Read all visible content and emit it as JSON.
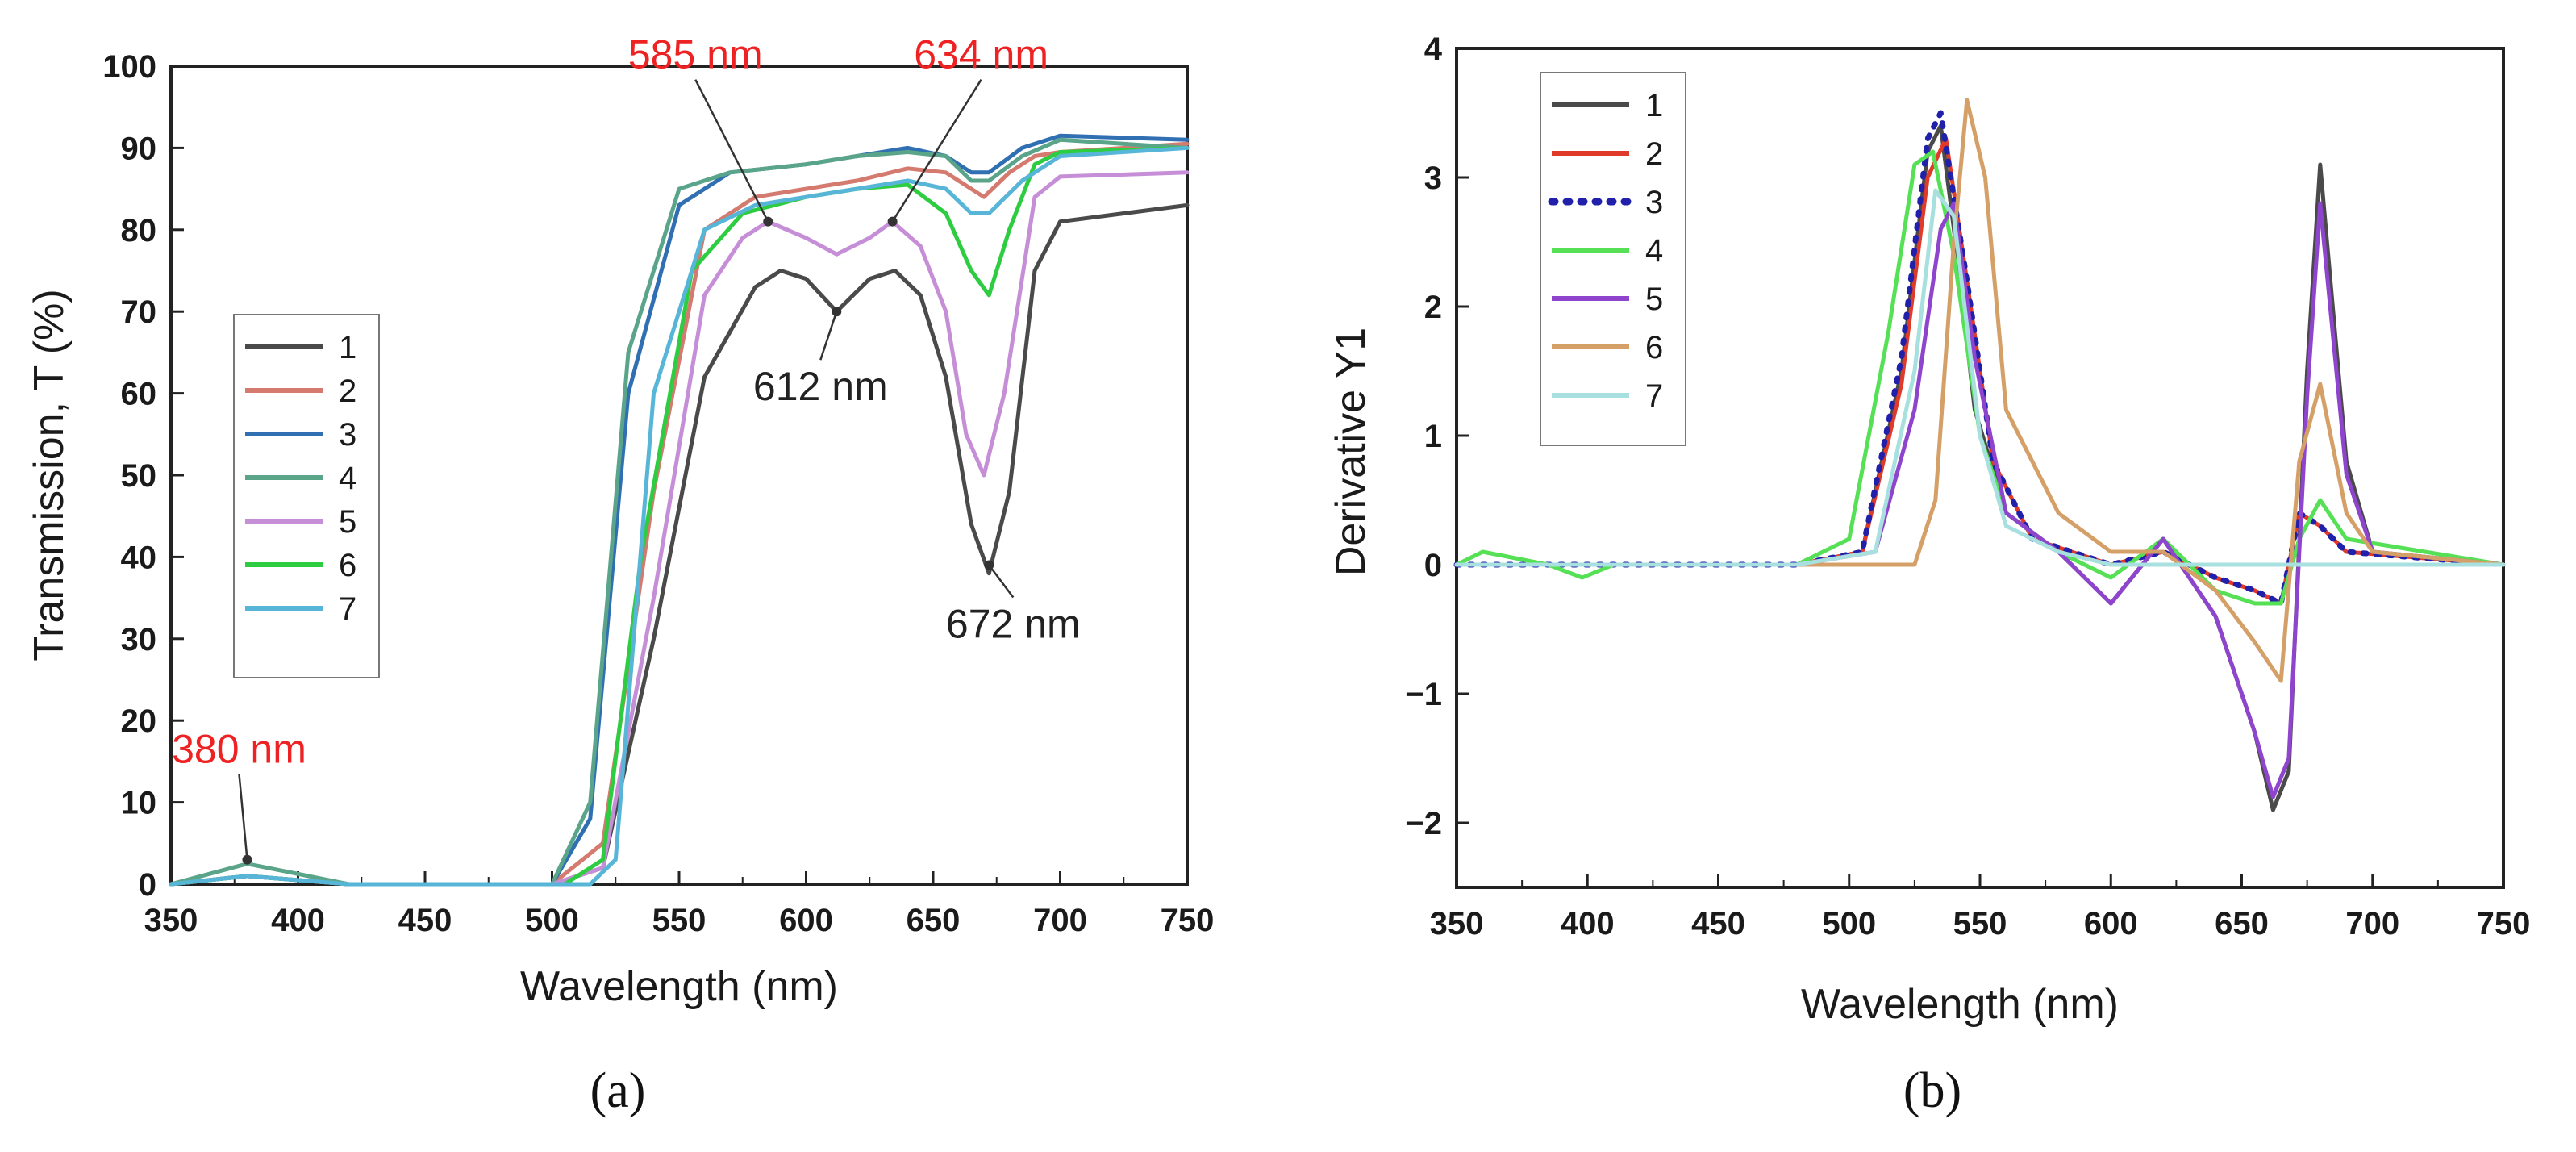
{
  "chart_data": [
    {
      "panel": "(a)",
      "type": "line",
      "xlabel": "Wavelength (nm)",
      "ylabel": "Transmission, T (%)",
      "xlim": [
        350,
        750
      ],
      "ylim": [
        0,
        100
      ],
      "xticks": [
        350,
        400,
        450,
        500,
        550,
        600,
        650,
        700,
        750
      ],
      "yticks": [
        0,
        10,
        20,
        30,
        40,
        50,
        60,
        70,
        80,
        90,
        100
      ],
      "annotations": [
        {
          "text": "380 nm",
          "color": "#ee2222",
          "x": 380,
          "y": 3
        },
        {
          "text": "585 nm",
          "color": "#ee2222",
          "x": 585,
          "y": 81
        },
        {
          "text": "634 nm",
          "color": "#ee2222",
          "x": 634,
          "y": 81
        },
        {
          "text": "612 nm",
          "color": "#222222",
          "x": 612,
          "y": 70
        },
        {
          "text": "672 nm",
          "color": "#222222",
          "x": 672,
          "y": 39
        }
      ],
      "series": [
        {
          "name": "1",
          "color": "#4a4a4a",
          "x": [
            350,
            380,
            420,
            500,
            520,
            540,
            560,
            580,
            590,
            600,
            612,
            625,
            635,
            645,
            655,
            665,
            672,
            680,
            690,
            700,
            750
          ],
          "y": [
            0,
            1,
            0,
            0,
            2,
            30,
            62,
            73,
            75,
            74,
            70,
            74,
            75,
            72,
            62,
            44,
            38,
            48,
            75,
            81,
            83
          ]
        },
        {
          "name": "2",
          "color": "#d47a6e",
          "x": [
            350,
            380,
            420,
            500,
            520,
            540,
            560,
            580,
            600,
            620,
            640,
            655,
            665,
            670,
            680,
            690,
            700,
            750
          ],
          "y": [
            0,
            1,
            0,
            0,
            5,
            48,
            80,
            84,
            85,
            86,
            87.5,
            87,
            85,
            84,
            87,
            89,
            89.5,
            90.5
          ]
        },
        {
          "name": "3",
          "color": "#2f6fb2",
          "x": [
            350,
            380,
            420,
            500,
            515,
            530,
            550,
            570,
            600,
            620,
            640,
            655,
            665,
            672,
            685,
            700,
            750
          ],
          "y": [
            0,
            1,
            0,
            0,
            8,
            60,
            83,
            87,
            88,
            89,
            90,
            89,
            87,
            87,
            90,
            91.5,
            91
          ]
        },
        {
          "name": "4",
          "color": "#5aa58a",
          "x": [
            350,
            380,
            420,
            500,
            515,
            530,
            550,
            570,
            600,
            620,
            640,
            655,
            665,
            672,
            685,
            700,
            750
          ],
          "y": [
            0,
            2.5,
            0,
            0,
            10,
            65,
            85,
            87,
            88,
            89,
            89.5,
            89,
            86,
            86,
            89,
            91,
            90
          ]
        },
        {
          "name": "5",
          "color": "#c58ed6",
          "x": [
            350,
            380,
            420,
            500,
            520,
            540,
            560,
            575,
            585,
            600,
            612,
            625,
            634,
            645,
            655,
            663,
            670,
            678,
            690,
            700,
            750
          ],
          "y": [
            0,
            1,
            0,
            0,
            2,
            35,
            72,
            79,
            81,
            79,
            77,
            79,
            81,
            78,
            70,
            55,
            50,
            60,
            84,
            86.5,
            87
          ]
        },
        {
          "name": "6",
          "color": "#2ecc40",
          "x": [
            350,
            380,
            420,
            505,
            520,
            535,
            555,
            575,
            600,
            620,
            640,
            655,
            665,
            672,
            680,
            690,
            700,
            750
          ],
          "y": [
            0,
            1,
            0,
            0,
            3,
            40,
            75,
            82,
            84,
            85,
            85.5,
            82,
            75,
            72,
            80,
            88,
            89.5,
            90
          ]
        },
        {
          "name": "7",
          "color": "#57b5d8",
          "x": [
            350,
            380,
            420,
            515,
            525,
            540,
            560,
            580,
            600,
            620,
            640,
            655,
            665,
            672,
            685,
            700,
            750
          ],
          "y": [
            0,
            1,
            0,
            0,
            3,
            60,
            80,
            83,
            84,
            85,
            86,
            85,
            82,
            82,
            86,
            89,
            90
          ]
        }
      ],
      "legend": {
        "labels": [
          "1",
          "2",
          "3",
          "4",
          "5",
          "6",
          "7"
        ],
        "location": "center-left"
      }
    },
    {
      "panel": "(b)",
      "type": "line",
      "xlabel": "Wavelength (nm)",
      "ylabel": "Derivative Y1",
      "xlim": [
        350,
        750
      ],
      "ylim": [
        -2.5,
        4
      ],
      "xticks": [
        350,
        400,
        450,
        500,
        550,
        600,
        650,
        700,
        750
      ],
      "yticks": [
        -2,
        -1,
        0,
        1,
        2,
        3,
        4
      ],
      "ytick_labels": [
        "−2",
        "−1",
        "0",
        "1",
        "2",
        "3",
        "4"
      ],
      "series": [
        {
          "name": "1",
          "color": "#4a4a4a",
          "dash": "solid",
          "x": [
            350,
            480,
            505,
            520,
            530,
            535,
            540,
            548,
            560,
            580,
            600,
            620,
            640,
            655,
            662,
            668,
            675,
            680,
            690,
            700,
            750
          ],
          "y": [
            0,
            0,
            0.1,
            1.5,
            3.2,
            3.4,
            2.6,
            1.2,
            0.4,
            0.1,
            -0.3,
            0.2,
            -0.4,
            -1.3,
            -1.9,
            -1.6,
            1.5,
            3.1,
            0.8,
            0.1,
            0
          ]
        },
        {
          "name": "2",
          "color": "#e03a2a",
          "dash": "solid",
          "x": [
            350,
            480,
            505,
            520,
            530,
            537,
            545,
            555,
            570,
            600,
            620,
            640,
            655,
            665,
            672,
            680,
            690,
            750
          ],
          "y": [
            0,
            0,
            0.1,
            1.4,
            3.0,
            3.3,
            2.2,
            0.8,
            0.2,
            0,
            0.1,
            -0.1,
            -0.2,
            -0.3,
            0.4,
            0.3,
            0.1,
            0
          ]
        },
        {
          "name": "3",
          "color": "#2020aa",
          "dash": "dotted",
          "x": [
            350,
            480,
            505,
            520,
            530,
            535,
            545,
            555,
            570,
            600,
            620,
            640,
            655,
            665,
            672,
            680,
            690,
            750
          ],
          "y": [
            0,
            0,
            0.1,
            1.6,
            3.3,
            3.5,
            2.2,
            0.8,
            0.2,
            0,
            0.1,
            -0.1,
            -0.2,
            -0.3,
            0.4,
            0.3,
            0.1,
            0
          ]
        },
        {
          "name": "4",
          "color": "#55e055",
          "dash": "solid",
          "x": [
            350,
            360,
            385,
            398,
            410,
            480,
            500,
            515,
            525,
            532,
            540,
            550,
            560,
            580,
            600,
            620,
            640,
            655,
            665,
            672,
            680,
            690,
            750
          ],
          "y": [
            0,
            0.1,
            0,
            -0.1,
            0,
            0,
            0.2,
            1.8,
            3.1,
            3.2,
            2.4,
            1.0,
            0.4,
            0.1,
            -0.1,
            0.2,
            -0.2,
            -0.3,
            -0.3,
            0.2,
            0.5,
            0.2,
            0
          ]
        },
        {
          "name": "5",
          "color": "#8e44cc",
          "dash": "solid",
          "x": [
            350,
            480,
            510,
            525,
            535,
            540,
            548,
            560,
            580,
            600,
            620,
            640,
            655,
            662,
            668,
            675,
            680,
            690,
            700,
            750
          ],
          "y": [
            0,
            0,
            0.1,
            1.2,
            2.6,
            2.8,
            1.6,
            0.4,
            0.1,
            -0.3,
            0.2,
            -0.4,
            -1.3,
            -1.8,
            -1.5,
            1.3,
            2.8,
            0.7,
            0.1,
            0
          ]
        },
        {
          "name": "6",
          "color": "#d4a068",
          "dash": "solid",
          "x": [
            350,
            500,
            525,
            533,
            540,
            545,
            552,
            560,
            580,
            600,
            620,
            640,
            655,
            665,
            672,
            680,
            690,
            700,
            750
          ],
          "y": [
            0,
            0,
            0,
            0.5,
            2.5,
            3.6,
            3.0,
            1.2,
            0.4,
            0.1,
            0.1,
            -0.2,
            -0.6,
            -0.9,
            0.8,
            1.4,
            0.4,
            0.1,
            0
          ]
        },
        {
          "name": "7",
          "color": "#a8e0e0",
          "dash": "solid",
          "x": [
            350,
            480,
            510,
            525,
            533,
            540,
            550,
            560,
            580,
            600,
            750
          ],
          "y": [
            0,
            0,
            0.1,
            1.5,
            2.9,
            2.7,
            1.0,
            0.3,
            0.1,
            0,
            0
          ]
        }
      ],
      "legend": {
        "labels": [
          "1",
          "2",
          "3",
          "4",
          "5",
          "6",
          "7"
        ],
        "location": "top-left"
      }
    }
  ]
}
